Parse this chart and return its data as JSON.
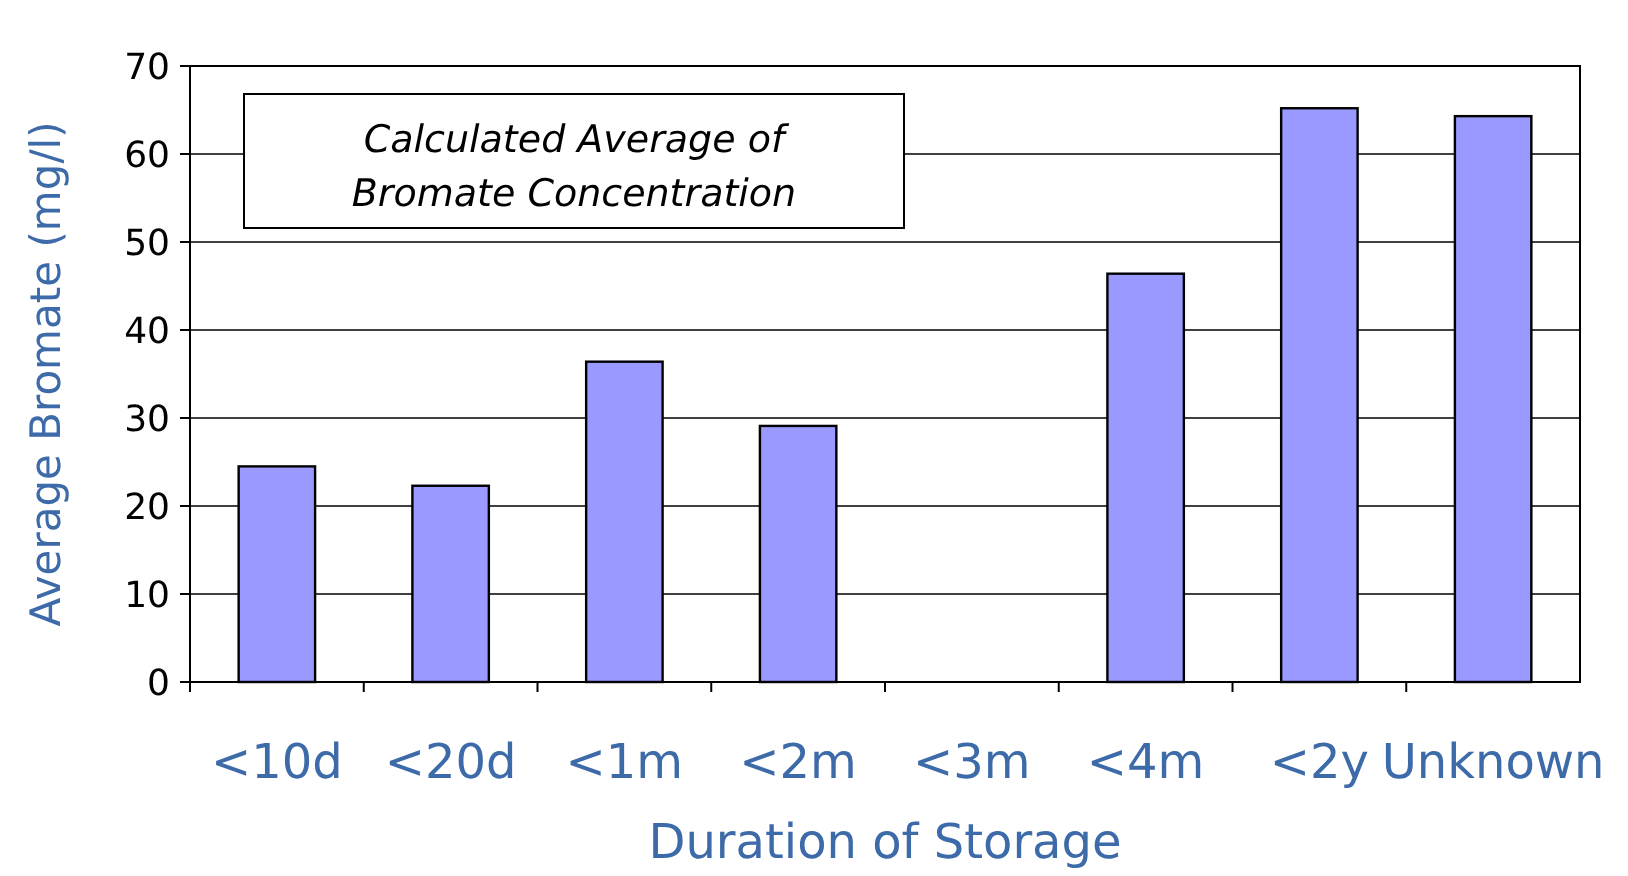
{
  "chart_data": {
    "type": "bar",
    "title": "Calculated Average of Bromate Concentration",
    "xlabel": "Duration of Storage",
    "ylabel": "Average Bromate (mg/l)",
    "categories": [
      "<10d",
      "<20d",
      "<1m",
      "<2m",
      "<3m",
      "<4m",
      "<2y",
      "Unknown"
    ],
    "values": [
      24.5,
      22.3,
      36.4,
      29.1,
      null,
      46.4,
      65.2,
      64.3
    ],
    "color": "#9999ff",
    "ylim": [
      0,
      70
    ],
    "yticks": [
      0,
      10,
      20,
      30,
      40,
      50,
      60,
      70
    ],
    "grid": "y"
  }
}
